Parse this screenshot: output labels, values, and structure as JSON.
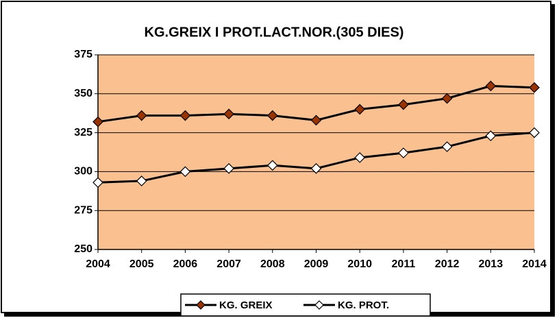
{
  "chart_data": {
    "type": "line",
    "title": "KG.GREIX I PROT.LACT.NOR.(305 DIES)",
    "categories": [
      "2004",
      "2005",
      "2006",
      "2007",
      "2008",
      "2009",
      "2010",
      "2011",
      "2012",
      "2013",
      "2014"
    ],
    "series": [
      {
        "name": "KG. GREIX",
        "color": "#993300",
        "values": [
          332,
          336,
          336,
          337,
          336,
          333,
          340,
          343,
          347,
          355,
          354
        ]
      },
      {
        "name": "KG. PROT.",
        "color": "#ffffff",
        "values": [
          293,
          294,
          300,
          302,
          304,
          302,
          309,
          312,
          316,
          323,
          325
        ]
      }
    ],
    "line_color": "#000000",
    "plot_background": "#fac090",
    "ylim": [
      250,
      375
    ],
    "yticks": [
      250,
      275,
      300,
      325,
      350,
      375
    ],
    "grid": true,
    "legend": "bottom"
  }
}
